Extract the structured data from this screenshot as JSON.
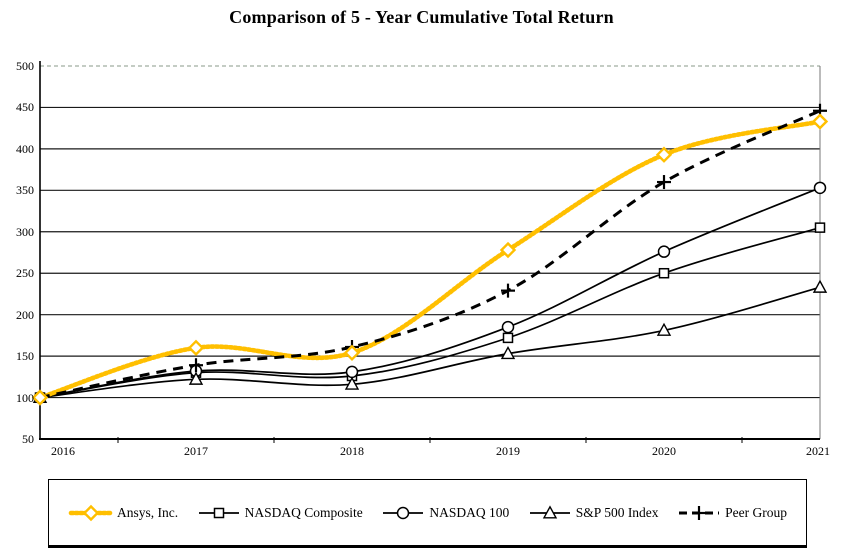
{
  "title": "Comparison of 5 - Year Cumulative Total Return",
  "chart_data": {
    "type": "line",
    "categories": [
      "2016",
      "2017",
      "2018",
      "2019",
      "2020",
      "2021"
    ],
    "series": [
      {
        "name": "Ansys, Inc.",
        "values": [
          100,
          160,
          154,
          278,
          393,
          433
        ],
        "color": "#FFBF00",
        "line_style": "thick-beaded",
        "marker": "diamond"
      },
      {
        "name": "NASDAQ Composite",
        "values": [
          100,
          130,
          126,
          172,
          250,
          305
        ],
        "color": "#000000",
        "line_style": "solid",
        "marker": "square"
      },
      {
        "name": "NASDAQ 100",
        "values": [
          100,
          132,
          131,
          185,
          276,
          353
        ],
        "color": "#000000",
        "line_style": "solid",
        "marker": "circle"
      },
      {
        "name": "S&P 500 Index",
        "values": [
          100,
          122,
          116,
          153,
          181,
          233
        ],
        "color": "#000000",
        "line_style": "solid",
        "marker": "triangle"
      },
      {
        "name": "Peer Group",
        "values": [
          100,
          139,
          161,
          229,
          360,
          446
        ],
        "color": "#000000",
        "line_style": "dashed",
        "marker": "plus"
      }
    ],
    "title": "Comparison of 5 - Year Cumulative Total Return",
    "xlabel": "",
    "ylabel": "",
    "ylim": [
      50,
      500
    ],
    "ytick_step": 50,
    "grid": "horizontal",
    "smoothed_lines": true,
    "legend_position": "bottom-box"
  },
  "y_axis": {
    "ticks": [
      "50",
      "100",
      "150",
      "200",
      "250",
      "300",
      "350",
      "400",
      "450",
      "500"
    ]
  },
  "x_axis": {
    "ticks": [
      "2016",
      "2017",
      "2018",
      "2019",
      "2020",
      "2021"
    ]
  },
  "colors": {
    "accent_gold": "#FFBF00",
    "line_black": "#000000",
    "grid_dark": "#1a1a1a",
    "top_border_dashed": "#8a9a8a",
    "right_border": "#777777"
  }
}
